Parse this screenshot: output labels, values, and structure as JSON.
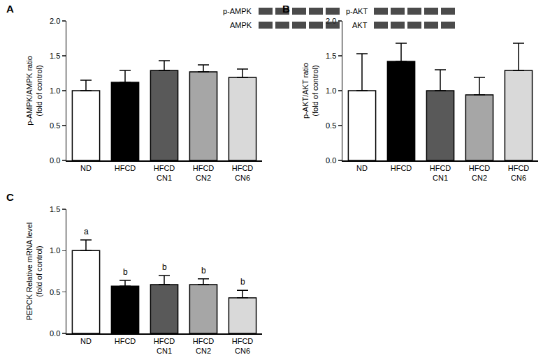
{
  "chart_data": [
    {
      "type": "bar",
      "title": "A",
      "ylabel": "p-AMPK/AMPK ratio\n(fold of control)",
      "categories": [
        "ND",
        "HFCD",
        "HFCD\nCN1",
        "HFCD\nCN2",
        "HFCD\nCN6"
      ],
      "values": [
        1.0,
        1.12,
        1.29,
        1.27,
        1.19
      ],
      "errors": [
        0.15,
        0.17,
        0.14,
        0.1,
        0.12
      ],
      "colors": [
        "#ffffff",
        "#000000",
        "#595959",
        "#a6a6a6",
        "#d9d9d9"
      ],
      "ylim": [
        0,
        2.0
      ],
      "yticks": [
        {
          "value": 0,
          "label": "0.0"
        },
        {
          "value": 0.5,
          "label": "0.5"
        },
        {
          "value": 1.0,
          "label": "1.0"
        },
        {
          "value": 1.5,
          "label": "1.5"
        },
        {
          "value": 2.0,
          "label": "2.0"
        }
      ],
      "blot_labels": [
        "p-AMPK",
        "AMPK"
      ],
      "grid": false
    },
    {
      "type": "bar",
      "title": "B",
      "ylabel": "p-AKT/AKT ratio\n(fold of control)",
      "categories": [
        "ND",
        "HFCD",
        "HFCD\nCN1",
        "HFCD\nCN2",
        "HFCD\nCN6"
      ],
      "values": [
        1.0,
        1.42,
        1.0,
        0.94,
        1.29
      ],
      "errors": [
        0.53,
        0.26,
        0.3,
        0.25,
        0.39
      ],
      "colors": [
        "#ffffff",
        "#000000",
        "#595959",
        "#a6a6a6",
        "#d9d9d9"
      ],
      "ylim": [
        0,
        2.0
      ],
      "yticks": [
        {
          "value": 0,
          "label": "0.0"
        },
        {
          "value": 0.5,
          "label": "0.5"
        },
        {
          "value": 1.0,
          "label": "1.0"
        },
        {
          "value": 1.5,
          "label": "1.5"
        },
        {
          "value": 2.0,
          "label": "2.0"
        }
      ],
      "blot_labels": [
        "p-AKT",
        "AKT"
      ],
      "grid": false
    },
    {
      "type": "bar",
      "title": "C",
      "ylabel": "PEPCK Relative mRNA level\n(fold of control)",
      "categories": [
        "ND",
        "HFCD",
        "HFCD\nCN1",
        "HFCD\nCN2",
        "HFCD\nCN6"
      ],
      "values": [
        1.0,
        0.57,
        0.59,
        0.59,
        0.43
      ],
      "errors": [
        0.13,
        0.07,
        0.11,
        0.07,
        0.09
      ],
      "colors": [
        "#ffffff",
        "#000000",
        "#595959",
        "#a6a6a6",
        "#d9d9d9"
      ],
      "ylim": [
        0,
        1.5
      ],
      "yticks": [
        {
          "value": 0,
          "label": "0.0"
        },
        {
          "value": 0.5,
          "label": "0.5"
        },
        {
          "value": 1.0,
          "label": "1.0"
        },
        {
          "value": 1.5,
          "label": "1.5"
        }
      ],
      "significance_labels": [
        "a",
        "b",
        "b",
        "b",
        "b"
      ],
      "grid": false
    }
  ]
}
